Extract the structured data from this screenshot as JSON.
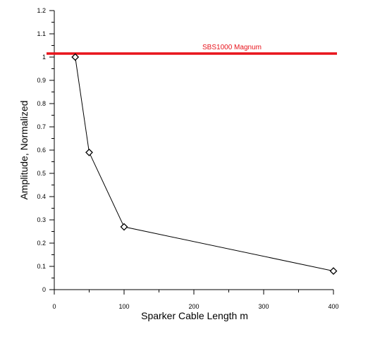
{
  "chart_data": {
    "type": "line",
    "xlabel": "Sparker Cable Length m",
    "ylabel": "Amplitude, Normalized",
    "xlim": [
      0,
      400
    ],
    "ylim": [
      0,
      1.2
    ],
    "x_ticks": [
      0,
      100,
      200,
      300,
      400
    ],
    "x_tick_labels": [
      "0",
      "100",
      "200",
      "300",
      "400"
    ],
    "y_ticks": [
      0,
      0.1,
      0.2,
      0.3,
      0.4,
      0.5,
      0.6,
      0.7,
      0.8,
      0.9,
      1,
      1.1,
      1.2
    ],
    "y_tick_labels": [
      "0",
      "0.1",
      "0.2",
      "0.3",
      "0.4",
      "0.5",
      "0.6",
      "0.7",
      "0.8",
      "0.9",
      "1",
      "1.1",
      "1.2"
    ],
    "grid": false,
    "series": [
      {
        "x": [
          30,
          50,
          100,
          400
        ],
        "values": [
          1.0,
          0.59,
          0.27,
          0.08
        ],
        "marker": "diamond",
        "color": "#000000"
      }
    ],
    "reference_lines": [
      {
        "label": "SBS1000 Magnum",
        "y": 1.015,
        "color": "#e8141c"
      }
    ]
  }
}
